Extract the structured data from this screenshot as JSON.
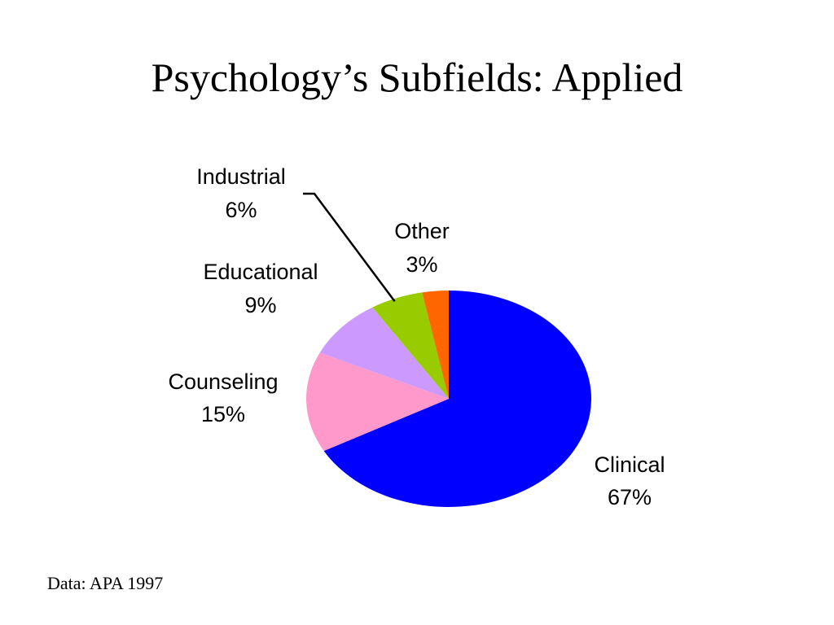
{
  "slide": {
    "title": "Psychology’s Subfields: Applied",
    "source_note": "Data: APA 1997"
  },
  "chart_data": {
    "type": "pie",
    "title": "",
    "slices": [
      {
        "name": "Clinical",
        "value": 67,
        "label": "67%",
        "color": "#0000FF"
      },
      {
        "name": "Counseling",
        "value": 15,
        "label": "15%",
        "color": "#FF99CC"
      },
      {
        "name": "Educational",
        "value": 9,
        "label": "9%",
        "color": "#CC99FF"
      },
      {
        "name": "Industrial",
        "value": 6,
        "label": "6%",
        "color": "#99CC00"
      },
      {
        "name": "Other",
        "value": 3,
        "label": "3%",
        "color": "#FF6600"
      }
    ],
    "legend": "none"
  }
}
